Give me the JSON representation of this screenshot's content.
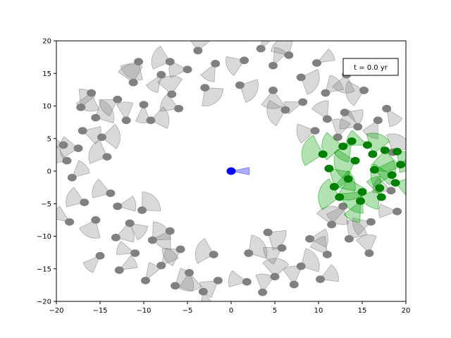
{
  "chart_data": {
    "type": "scatter",
    "title": "",
    "xlabel": "",
    "ylabel": "",
    "xlim": [
      -20,
      20
    ],
    "ylim": [
      -20,
      20
    ],
    "xticks": [
      -20,
      -15,
      -10,
      -5,
      0,
      5,
      10,
      15,
      20
    ],
    "yticks": [
      -20,
      -15,
      -10,
      -5,
      0,
      5,
      10,
      15,
      20
    ],
    "grid": false,
    "annotation": "t = 0.0 yr",
    "annotation_position": "top-right",
    "colors": {
      "background_body": "#808080",
      "highlighted_body": "#008000",
      "central_body": "#0000ff",
      "gray_wedge": "#808080",
      "green_wedge": "#00a000",
      "blue_wedge": "#3333ff"
    },
    "ring": {
      "inner_radius_approx": 10,
      "outer_radius_approx": 20,
      "highlighted_region": "x from about 9 to 20, y from about -5 to 5"
    },
    "series": [
      {
        "color": "gray",
        "points": [
          [
            -17.5,
            3.5
          ],
          [
            -18.2,
            -1.0
          ],
          [
            -16.8,
            -4.8
          ],
          [
            -15.5,
            8.2
          ],
          [
            -13.0,
            11.0
          ],
          [
            -11.2,
            13.6
          ],
          [
            -8.0,
            14.8
          ],
          [
            -5.0,
            15.6
          ],
          [
            -1.8,
            16.5
          ],
          [
            1.5,
            17.0
          ],
          [
            4.8,
            16.2
          ],
          [
            8.0,
            14.4
          ],
          [
            10.8,
            12.0
          ],
          [
            13.0,
            9.0
          ],
          [
            14.5,
            6.8
          ],
          [
            16.8,
            7.8
          ],
          [
            18.5,
            2.9
          ],
          [
            18.3,
            -3.0
          ],
          [
            16.0,
            -7.8
          ],
          [
            13.5,
            -10.4
          ],
          [
            11.0,
            -12.8
          ],
          [
            8.0,
            -14.6
          ],
          [
            5.0,
            -16.2
          ],
          [
            1.8,
            -17.0
          ],
          [
            -1.5,
            -16.8
          ],
          [
            -4.8,
            -15.6
          ],
          [
            -8.0,
            -14.5
          ],
          [
            -11.0,
            -12.6
          ],
          [
            -13.2,
            -10.2
          ],
          [
            -15.5,
            -7.5
          ],
          [
            -17.0,
            6.2
          ],
          [
            -18.8,
            1.6
          ],
          [
            -14.2,
            2.2
          ],
          [
            -13.8,
            -3.4
          ],
          [
            -12.0,
            7.8
          ],
          [
            -10.0,
            10.2
          ],
          [
            -6.8,
            11.8
          ],
          [
            -3.0,
            12.8
          ],
          [
            1.0,
            13.2
          ],
          [
            4.8,
            12.4
          ],
          [
            8.2,
            10.6
          ],
          [
            11.0,
            8.0
          ],
          [
            12.2,
            5.2
          ],
          [
            12.8,
            -5.4
          ],
          [
            11.5,
            -8.2
          ],
          [
            9.0,
            -10.4
          ],
          [
            5.8,
            -11.8
          ],
          [
            2.0,
            -12.6
          ],
          [
            -2.0,
            -12.8
          ],
          [
            -5.8,
            -12.0
          ],
          [
            -9.0,
            -10.6
          ],
          [
            -11.6,
            -8.0
          ],
          [
            -13.0,
            -5.4
          ],
          [
            -16.0,
            12.0
          ],
          [
            -10.6,
            16.8
          ],
          [
            -3.8,
            18.5
          ],
          [
            3.4,
            18.8
          ],
          [
            9.8,
            16.6
          ],
          [
            15.2,
            12.4
          ],
          [
            17.8,
            9.6
          ],
          [
            19.0,
            -6.2
          ],
          [
            15.8,
            -12.6
          ],
          [
            10.2,
            -16.6
          ],
          [
            3.6,
            -18.6
          ],
          [
            -3.2,
            -18.5
          ],
          [
            -9.8,
            -16.8
          ],
          [
            -15.0,
            -13.0
          ],
          [
            -18.5,
            -7.8
          ],
          [
            -19.2,
            4.0
          ],
          [
            -14.8,
            5.2
          ],
          [
            -7.0,
            16.8
          ],
          [
            6.6,
            17.8
          ],
          [
            13.2,
            14.8
          ],
          [
            7.2,
            -17.4
          ],
          [
            -6.4,
            -17.6
          ],
          [
            -12.8,
            -15.2
          ],
          [
            -17.2,
            9.8
          ],
          [
            -9.2,
            7.8
          ],
          [
            -6.0,
            9.6
          ],
          [
            6.2,
            9.4
          ],
          [
            9.6,
            6.2
          ],
          [
            -10.2,
            -6.0
          ],
          [
            -7.0,
            -9.2
          ],
          [
            4.2,
            -9.4
          ]
        ]
      },
      {
        "color": "green",
        "points": [
          [
            10.5,
            2.6
          ],
          [
            11.2,
            0.4
          ],
          [
            12.8,
            3.8
          ],
          [
            13.4,
            -1.2
          ],
          [
            14.2,
            1.6
          ],
          [
            15.0,
            -3.2
          ],
          [
            15.6,
            4.0
          ],
          [
            16.4,
            0.2
          ],
          [
            17.0,
            -2.6
          ],
          [
            17.6,
            3.2
          ],
          [
            18.4,
            -0.6
          ],
          [
            19.0,
            3.0
          ],
          [
            11.8,
            -2.4
          ],
          [
            12.4,
            -4.0
          ],
          [
            13.8,
            4.6
          ],
          [
            14.8,
            -4.6
          ],
          [
            16.2,
            2.6
          ],
          [
            17.2,
            -4.0
          ],
          [
            18.8,
            -1.8
          ],
          [
            19.4,
            1.0
          ]
        ]
      },
      {
        "color": "blue",
        "points": [
          [
            0.0,
            0.0
          ]
        ]
      }
    ]
  }
}
